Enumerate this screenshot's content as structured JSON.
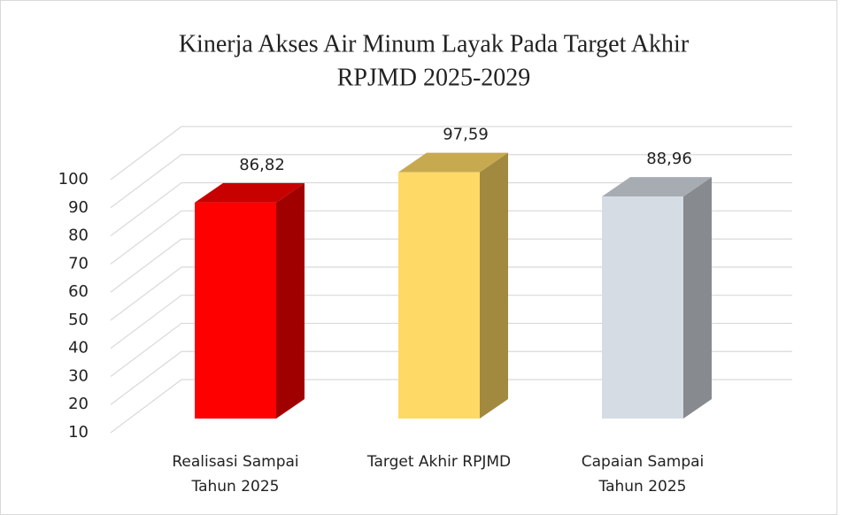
{
  "chart_data": {
    "type": "bar3d",
    "title": [
      "Kinerja Akses  Air Minum Layak Pada Target Akhir",
      "RPJMD 2025-2029"
    ],
    "categories": [
      "Realisasi Sampai Tahun 2025",
      "Target Akhir RPJMD",
      "Capaian Sampai Tahun 2025"
    ],
    "values": [
      86.82,
      97.59,
      88.96
    ],
    "value_labels": [
      "86,82",
      "97,59",
      "88,96"
    ],
    "colors": [
      "#ff0000",
      "#ffd966",
      "#d6dce4"
    ],
    "ylim": [
      10,
      100
    ],
    "yticks": [
      10,
      20,
      30,
      40,
      50,
      60,
      70,
      80,
      90,
      100
    ],
    "grid": true
  }
}
